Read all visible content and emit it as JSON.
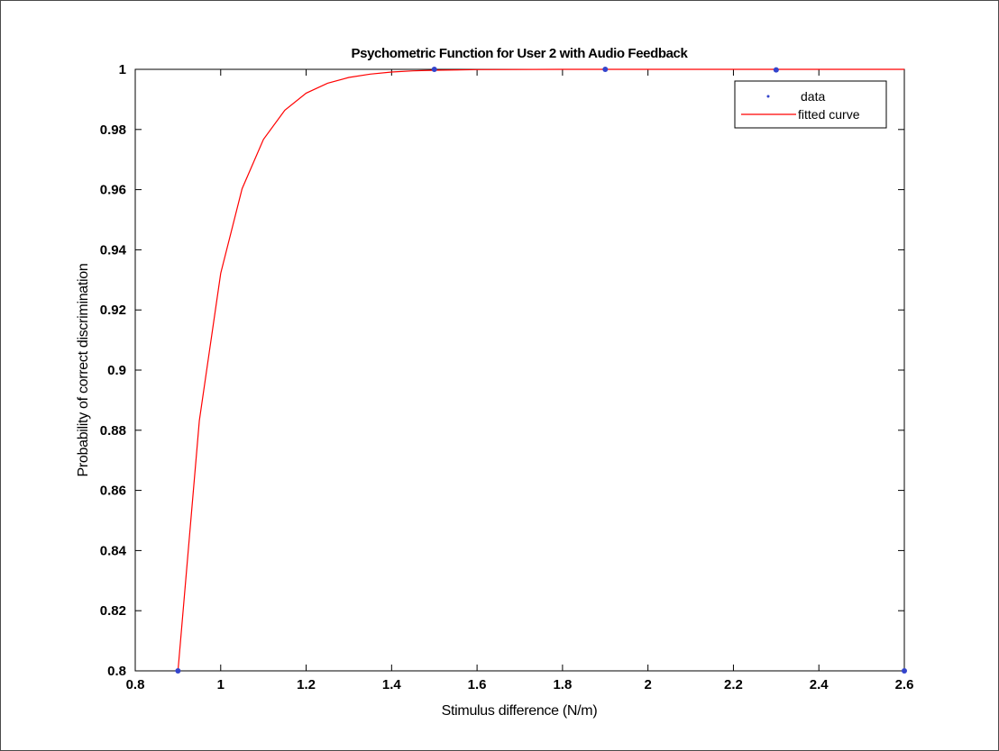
{
  "chart_data": {
    "type": "line",
    "title": "Psychometric Function for User 2 with Audio Feedback",
    "xlabel": "Stimulus difference (N/m)",
    "ylabel": "Probability of correct discrimination",
    "xlim": [
      0.8,
      2.6
    ],
    "ylim": [
      0.8,
      1.0
    ],
    "xticks": [
      0.8,
      1.0,
      1.2,
      1.4,
      1.6,
      1.8,
      2.0,
      2.2,
      2.4,
      2.6
    ],
    "xtick_labels": [
      "0.8",
      "1",
      "1.2",
      "1.4",
      "1.6",
      "1.8",
      "2",
      "2.2",
      "2.4",
      "2.6"
    ],
    "yticks": [
      0.8,
      0.82,
      0.84,
      0.86,
      0.88,
      0.9,
      0.92,
      0.94,
      0.96,
      0.98,
      1.0
    ],
    "ytick_labels": [
      "0.8",
      "0.82",
      "0.84",
      "0.86",
      "0.88",
      "0.9",
      "0.92",
      "0.94",
      "0.96",
      "0.98",
      "1"
    ],
    "grid": false,
    "legend_position": "top-right",
    "series": [
      {
        "name": "data",
        "kind": "scatter",
        "color": "#3344cc",
        "x": [
          0.9,
          1.5,
          1.9,
          2.3,
          2.6
        ],
        "y": [
          0.8,
          1.0,
          1.0,
          0.9998,
          0.8
        ]
      },
      {
        "name": "fitted curve",
        "kind": "line",
        "color": "#ff0000",
        "x": [
          0.9,
          0.95,
          1.0,
          1.05,
          1.1,
          1.15,
          1.2,
          1.25,
          1.3,
          1.35,
          1.4,
          1.45,
          1.5,
          1.6,
          1.8,
          2.0,
          2.2,
          2.4,
          2.6
        ],
        "y": [
          0.8,
          0.8832,
          0.9322,
          0.9603,
          0.9767,
          0.9864,
          0.9921,
          0.9954,
          0.9973,
          0.9984,
          0.9991,
          0.9995,
          0.9997,
          0.9999,
          1.0,
          1.0,
          1.0,
          1.0,
          1.0
        ]
      }
    ]
  }
}
